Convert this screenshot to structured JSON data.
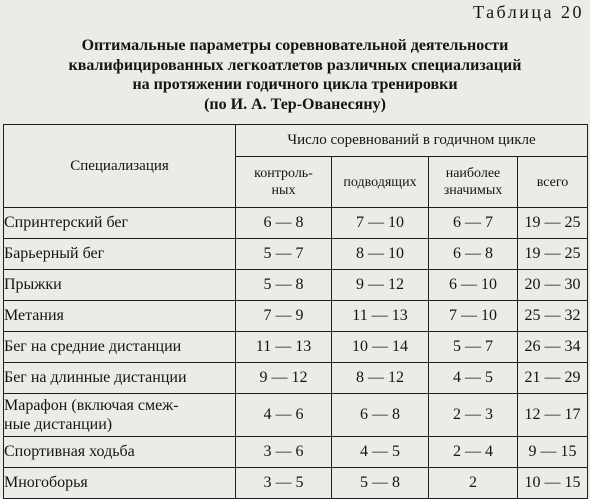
{
  "table_label": "Таблица 20",
  "caption": [
    "Оптимальные параметры соревновательной деятельности",
    "квалифицированных легкоатлетов различных специализаций",
    "на протяжении годичного цикла тренировки",
    "(по И. А. Тер-Ованесяну)"
  ],
  "header": {
    "specialization": "Специализация",
    "group": "Число соревнований в годичном цикле",
    "columns": [
      [
        "контроль-",
        "ных"
      ],
      [
        "подводящих"
      ],
      [
        "наиболее",
        "значимых"
      ],
      [
        "всего"
      ]
    ]
  },
  "rows": [
    {
      "name": [
        "Спринтерский бег"
      ],
      "values": [
        "6 — 8",
        "7 — 10",
        "6 — 7",
        "19 — 25"
      ]
    },
    {
      "name": [
        "Барьерный бег"
      ],
      "values": [
        "5 — 7",
        "8 — 10",
        "6 — 8",
        "19 — 25"
      ]
    },
    {
      "name": [
        "Прыжки"
      ],
      "values": [
        "5 — 8",
        "9 — 12",
        "6 — 10",
        "20 — 30"
      ]
    },
    {
      "name": [
        "Метания"
      ],
      "values": [
        "7 — 9",
        "11 — 13",
        "7 — 10",
        "25 — 32"
      ]
    },
    {
      "name": [
        "Бег на средние дистанции"
      ],
      "values": [
        "11 — 13",
        "10 — 14",
        "5 — 7",
        "26 — 34"
      ]
    },
    {
      "name": [
        "Бег на длинные дистанции"
      ],
      "values": [
        "9 — 12",
        "8 — 12",
        "4 — 5",
        "21 — 29"
      ]
    },
    {
      "name": [
        "Марафон (включая смеж-",
        "ные дистанции)"
      ],
      "values": [
        "4 — 6",
        "6 — 8",
        "2 — 3",
        "12 — 17"
      ]
    },
    {
      "name": [
        "Спортивная ходьба"
      ],
      "values": [
        "3 — 6",
        "4 — 5",
        "2 — 4",
        "9 — 15"
      ]
    },
    {
      "name": [
        "Многоборья"
      ],
      "values": [
        "3 — 5",
        "5 — 8",
        "2",
        "10 — 15"
      ]
    }
  ]
}
